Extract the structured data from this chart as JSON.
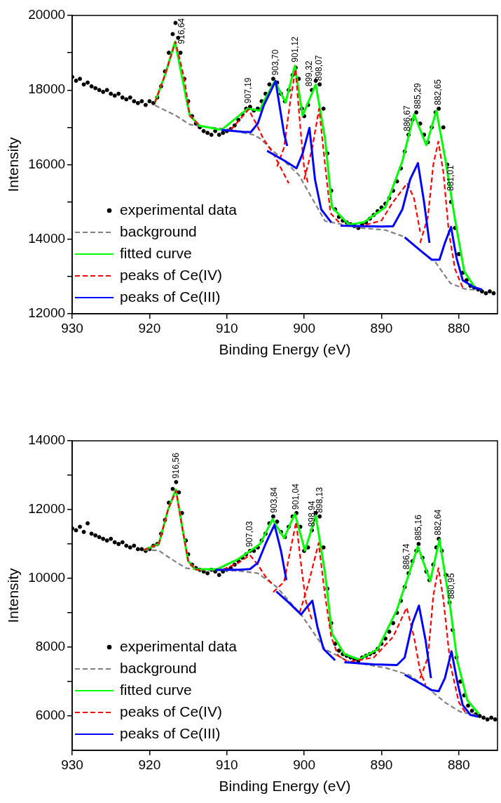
{
  "chart_data": [
    {
      "type": "line",
      "xlabel": "Binding Energy (eV)",
      "ylabel": "Intensity",
      "xlim": [
        930,
        875
      ],
      "xticks": [
        930,
        920,
        910,
        900,
        890,
        880
      ],
      "ylim": [
        12000,
        20000
      ],
      "yticks": [
        12000,
        {
          "value": 13000,
          "label": null
        },
        14000,
        {
          "value": 15000,
          "label": null
        },
        16000,
        {
          "value": 17000,
          "label": null
        },
        18000,
        {
          "value": 19000,
          "label": null
        },
        20000
      ],
      "grid": false,
      "legend": "bottom left",
      "annotations": [
        {
          "text": "916,64",
          "x": 916.64,
          "y": 19800
        },
        {
          "text": "907,19",
          "x": 907.19,
          "y": 17550
        },
        {
          "text": "903,70",
          "x": 903.7,
          "y": 18300
        },
        {
          "text": "901,12",
          "x": 901.12,
          "y": 18600
        },
        {
          "text": "899,32",
          "x": 899.32,
          "y": 17600
        },
        {
          "text": "898,07",
          "x": 898.07,
          "y": 18150
        },
        {
          "text": "886,67",
          "x": 886.67,
          "y": 16800
        },
        {
          "text": "885,29",
          "x": 885.29,
          "y": 17400
        },
        {
          "text": "882,65",
          "x": 882.65,
          "y": 17500
        },
        {
          "text": "881,01",
          "x": 881.01,
          "y": 15200
        }
      ],
      "series": [
        {
          "name": "experimental data",
          "type": "scatter",
          "marker": "circle",
          "color": "#000000",
          "x": [
            930,
            929.5,
            929,
            928.5,
            928,
            927.5,
            927,
            926.5,
            926,
            925.5,
            925,
            924.5,
            924,
            923.5,
            923,
            922.5,
            922,
            921.5,
            921,
            920.5,
            920,
            919.5,
            919,
            918.5,
            918,
            917.5,
            917,
            916.64,
            916.3,
            916,
            915.5,
            915,
            914.5,
            914,
            913.5,
            913,
            912.5,
            912,
            911.5,
            911,
            910.5,
            910,
            909.5,
            909,
            908.5,
            908,
            907.5,
            907,
            906.5,
            906,
            905.5,
            905,
            904.5,
            904,
            903.5,
            903,
            902.5,
            902,
            901.5,
            901.1,
            900.7,
            900.3,
            900,
            899.5,
            899,
            898.5,
            898,
            897.5,
            897,
            896.5,
            896,
            895.5,
            895,
            894.5,
            894,
            893.5,
            893,
            892.5,
            892,
            891.5,
            891,
            890.5,
            890,
            889.5,
            889,
            888.5,
            888,
            887.5,
            887,
            886.5,
            886,
            885.5,
            885,
            884.5,
            884,
            883.5,
            883,
            882.6,
            882,
            881.5,
            881,
            880.5,
            880,
            879.5,
            879,
            878.5,
            878,
            877.5,
            877,
            876.5,
            876,
            875.5
          ],
          "values": [
            18350,
            18250,
            18300,
            18150,
            18200,
            18100,
            18050,
            18000,
            17950,
            18000,
            17900,
            17850,
            17900,
            17800,
            17750,
            17800,
            17700,
            17650,
            17700,
            17600,
            17700,
            17650,
            17800,
            18100,
            18500,
            19000,
            19500,
            19800,
            19400,
            19000,
            18300,
            17700,
            17300,
            17100,
            17000,
            16900,
            16850,
            16800,
            16900,
            16800,
            16850,
            16900,
            16950,
            17050,
            17200,
            17350,
            17500,
            17550,
            17450,
            17500,
            17700,
            17900,
            18150,
            18300,
            18200,
            17900,
            17700,
            18000,
            18400,
            18600,
            18300,
            17500,
            17300,
            17600,
            18000,
            18250,
            18150,
            17500,
            16300,
            15300,
            14800,
            14600,
            14500,
            14450,
            14400,
            14350,
            14300,
            14400,
            14450,
            14550,
            14650,
            14750,
            14850,
            14950,
            15100,
            15300,
            15550,
            15900,
            16350,
            16800,
            17200,
            17400,
            17100,
            16800,
            16600,
            17000,
            17400,
            17500,
            17000,
            16000,
            15000,
            14300,
            13600,
            13100,
            12900,
            12750,
            12700,
            12650,
            12600,
            12550,
            12600,
            12550
          ]
        },
        {
          "name": "background",
          "type": "line",
          "line_style": "dashed",
          "color": "#808080",
          "x": [
            919.3,
            916.6,
            914.8,
            913.5,
            910,
            906.6,
            905.7,
            900.7,
            897.3,
            892.6,
            889.5,
            887.0,
            884.2,
            883.0,
            881.1,
            879.3,
            878.0
          ],
          "values": [
            17590,
            17315,
            17075,
            17030,
            16950,
            16800,
            16700,
            15725,
            14485,
            14300,
            14245,
            14060,
            13560,
            13375,
            12820,
            12670,
            12640
          ]
        },
        {
          "name": "fitted curve",
          "type": "line",
          "line_style": "solid",
          "color": "#00ff00",
          "x": [
            919.3,
            918,
            916.7,
            914.8,
            913.5,
            910.7,
            907.3,
            905.7,
            905.4,
            903.8,
            902.4,
            901.2,
            900.2,
            898.5,
            897.3,
            896.4,
            894.2,
            892.3,
            889.5,
            887.3,
            885.8,
            884.2,
            882.9,
            881.7,
            880.5,
            879.3,
            878.0
          ],
          "values": [
            17667,
            18400,
            19295,
            17315,
            17040,
            16930,
            17500,
            17445,
            17630,
            18240,
            17665,
            18650,
            17315,
            18150,
            16700,
            14855,
            14390,
            14450,
            14855,
            16090,
            17350,
            16520,
            17445,
            16090,
            14540,
            13135,
            12730
          ]
        },
        {
          "name": "peaks of Ce(IV)",
          "type": "line",
          "line_style": "dashed",
          "color": "#ff0000",
          "x": [
            919.3,
            918,
            916.64,
            915.5,
            914.8,
            913.5
          ],
          "values": [
            17667,
            18400,
            19295,
            18300,
            17315,
            17040
          ]
        },
        {
          "type": "line",
          "line_style": "dashed",
          "color": "#ff0000",
          "x": [
            909.5,
            907.19,
            906.2,
            905.3,
            904,
            902
          ],
          "values": [
            16930,
            17480,
            17100,
            16700,
            16300,
            15500
          ]
        },
        {
          "type": "line",
          "line_style": "dashed",
          "color": "#ff0000",
          "x": [
            903.5,
            902.6,
            901.8,
            901.12,
            900.5,
            900,
            899.5
          ],
          "values": [
            15950,
            16460,
            17700,
            18560,
            17000,
            15900,
            15500
          ]
        },
        {
          "type": "line",
          "line_style": "dashed",
          "color": "#ff0000",
          "x": [
            900,
            899,
            898.07,
            897.3,
            896.6,
            895.5
          ],
          "values": [
            15600,
            16400,
            17500,
            16000,
            14700,
            14450
          ]
        },
        {
          "type": "line",
          "line_style": "dashed",
          "color": "#ff0000",
          "x": [
            893,
            890,
            888.5,
            886.67,
            885.8,
            885
          ],
          "values": [
            14330,
            14500,
            15000,
            15500,
            15100,
            14200
          ]
        },
        {
          "type": "line",
          "line_style": "dashed",
          "color": "#ff0000",
          "x": [
            885,
            884,
            883.3,
            882.65,
            882,
            881.3,
            880.5,
            879.5
          ],
          "values": [
            13900,
            14600,
            16000,
            16620,
            15800,
            14200,
            13200,
            12700
          ]
        },
        {
          "name": "peaks of Ce(III)",
          "type": "line",
          "line_style": "solid",
          "color": "#0000ff",
          "x": [
            910.7,
            908,
            906.9,
            906,
            905.2,
            903.7,
            902.6,
            902.2
          ],
          "values": [
            16930,
            16880,
            16870,
            17100,
            17600,
            18240,
            16830,
            16500
          ]
        },
        {
          "type": "line",
          "line_style": "solid",
          "color": "#0000ff",
          "x": [
            904.8,
            902.5,
            901,
            900.2,
            899.32,
            898.6,
            897.8,
            896.5
          ],
          "values": [
            16370,
            16100,
            15900,
            16300,
            16985,
            15600,
            14800,
            14450
          ]
        },
        {
          "type": "line",
          "line_style": "solid",
          "color": "#0000ff",
          "x": [
            895.3,
            890,
            888.5,
            887.3,
            886.3,
            885.29,
            884.5,
            883.8
          ],
          "values": [
            14360,
            14340,
            14350,
            14800,
            15600,
            16040,
            15000,
            13900
          ]
        },
        {
          "type": "line",
          "line_style": "solid",
          "color": "#0000ff",
          "x": [
            887,
            885,
            883.5,
            882.5,
            881.8,
            881.01,
            880.3,
            879.5,
            878,
            877
          ],
          "values": [
            14050,
            13700,
            13450,
            13450,
            13900,
            14330,
            13500,
            12900,
            12700,
            12650
          ]
        }
      ]
    },
    {
      "type": "line",
      "xlabel": "Binding Energy (eV)",
      "ylabel": "Intensity",
      "xlim": [
        930,
        875
      ],
      "xticks": [
        930,
        920,
        910,
        900,
        890,
        880
      ],
      "ylim": [
        5000,
        14000
      ],
      "yticks": [
        6000,
        {
          "value": 7000,
          "label": null
        },
        8000,
        {
          "value": 9000,
          "label": null
        },
        10000,
        {
          "value": 11000,
          "label": null
        },
        12000,
        {
          "value": 13000,
          "label": null
        },
        14000
      ],
      "grid": false,
      "legend": "bottom left",
      "annotations": [
        {
          "text": "916,56",
          "x": 916.56,
          "y": 12800
        },
        {
          "text": "907,03",
          "x": 907.03,
          "y": 10800
        },
        {
          "text": "903,84",
          "x": 903.84,
          "y": 11800
        },
        {
          "text": "901,04",
          "x": 901.04,
          "y": 11900
        },
        {
          "text": "898,94",
          "x": 898.94,
          "y": 11400
        },
        {
          "text": "898,13",
          "x": 898.13,
          "y": 11800
        },
        {
          "text": "886,74",
          "x": 886.74,
          "y": 10150
        },
        {
          "text": "885,16",
          "x": 885.16,
          "y": 11000
        },
        {
          "text": "882,64",
          "x": 882.64,
          "y": 11150
        },
        {
          "text": "880,95",
          "x": 880.95,
          "y": 9300
        }
      ],
      "series": [
        {
          "name": "experimental data",
          "type": "scatter",
          "marker": "circle",
          "color": "#000000",
          "x": [
            930,
            929.5,
            929,
            928.5,
            928,
            927.5,
            927,
            926.5,
            926,
            925.5,
            925,
            924.5,
            924,
            923.5,
            923,
            922.5,
            922,
            921.5,
            921,
            920.5,
            920,
            919.5,
            919,
            918.5,
            918,
            917.5,
            917,
            916.56,
            916.2,
            915.8,
            915.3,
            915,
            914.5,
            914,
            913.5,
            913,
            912.5,
            912,
            911.5,
            911,
            910.5,
            910,
            909.5,
            909,
            908.5,
            908,
            907.5,
            907,
            906.5,
            906,
            905.5,
            905,
            904.5,
            904,
            903.5,
            903,
            902.5,
            902,
            901.5,
            901,
            900.5,
            900,
            899.5,
            899,
            898.5,
            898,
            897.5,
            897,
            896.5,
            896,
            895.5,
            895,
            894.5,
            894,
            893.5,
            893,
            892.5,
            892,
            891.5,
            891,
            890.5,
            890,
            889.5,
            889,
            888.5,
            888,
            887.5,
            887,
            886.5,
            886,
            885.5,
            885.2,
            884.7,
            884.2,
            883.8,
            883.3,
            882.9,
            882.6,
            882.2,
            881.7,
            881.2,
            880.8,
            880.3,
            879.8,
            879.3,
            878.8,
            878.3,
            877.8,
            877.3,
            876.8,
            876.3,
            875.8,
            875.3
          ],
          "values": [
            11450,
            11400,
            11500,
            11350,
            11600,
            11300,
            11250,
            11200,
            11150,
            11100,
            11150,
            11050,
            11000,
            11050,
            10950,
            10900,
            10950,
            10850,
            10850,
            10800,
            10850,
            10950,
            11000,
            11300,
            11700,
            12200,
            12600,
            12800,
            12500,
            11900,
            11100,
            10700,
            10400,
            10300,
            10250,
            10200,
            10150,
            10250,
            10200,
            10100,
            10200,
            10250,
            10300,
            10400,
            10500,
            10600,
            10700,
            10800,
            10800,
            10900,
            11100,
            11300,
            11600,
            11800,
            11650,
            11350,
            11200,
            11500,
            11800,
            11900,
            11500,
            10800,
            10900,
            11400,
            11900,
            11800,
            10900,
            9700,
            8700,
            8100,
            7900,
            7800,
            7750,
            7700,
            7650,
            7600,
            7700,
            7750,
            7800,
            7850,
            7950,
            8100,
            8250,
            8450,
            8700,
            9000,
            9350,
            9750,
            10150,
            10500,
            10800,
            11000,
            10600,
            10200,
            9950,
            10400,
            10900,
            11150,
            10800,
            10100,
            9300,
            8500,
            7700,
            7000,
            6600,
            6300,
            6150,
            6050,
            6000,
            5950,
            5900,
            5950,
            5900
          ]
        },
        {
          "name": "background",
          "type": "line",
          "line_style": "dashed",
          "color": "#808080",
          "x": [
            920.7,
            918.8,
            917.2,
            915.3,
            913.5,
            908.5,
            906,
            903.6,
            900.4,
            897.3,
            894.2,
            889.5,
            886.4,
            883.9,
            881.7,
            879.8,
            877.7
          ],
          "values": [
            10830,
            10810,
            10565,
            10300,
            10250,
            10220,
            10150,
            9760,
            8950,
            7940,
            7580,
            7400,
            7190,
            6790,
            6380,
            6120,
            6020
          ]
        },
        {
          "name": "fitted curve",
          "type": "line",
          "line_style": "solid",
          "color": "#00ff00",
          "x": [
            920.7,
            918.8,
            917.6,
            916.6,
            915.0,
            914.1,
            911.3,
            908.5,
            906.9,
            905.7,
            904.1,
            902.6,
            901.2,
            899.9,
            898.5,
            897.3,
            896.4,
            894.8,
            892.9,
            890.5,
            888.0,
            886.4,
            885.3,
            883.7,
            882.5,
            881.1,
            880.2,
            878.9,
            877.4
          ],
          "values": [
            10830,
            11000,
            12000,
            12585,
            10505,
            10263,
            10263,
            10565,
            10810,
            11000,
            11717,
            11170,
            11880,
            10810,
            11820,
            10160,
            8400,
            7800,
            7640,
            7940,
            9090,
            10160,
            10930,
            9920,
            11130,
            9150,
            7600,
            6460,
            6060
          ]
        },
        {
          "name": "peaks of Ce(IV)",
          "type": "line",
          "line_style": "dashed",
          "color": "#ff0000",
          "x": [
            920.7,
            918.8,
            917.6,
            916.56,
            915.8,
            915,
            914.1,
            913
          ],
          "values": [
            10830,
            11000,
            12000,
            12550,
            11500,
            10500,
            10260,
            10240
          ]
        },
        {
          "type": "line",
          "line_style": "dashed",
          "color": "#ff0000",
          "x": [
            910.5,
            908.5,
            907.03,
            906,
            905,
            904
          ],
          "values": [
            10260,
            10450,
            10680,
            10400,
            10050,
            9800
          ]
        },
        {
          "type": "line",
          "line_style": "dashed",
          "color": "#ff0000",
          "x": [
            904,
            902.6,
            901.8,
            901.04,
            900.4,
            899.8,
            899
          ],
          "values": [
            9600,
            9900,
            10800,
            11640,
            10400,
            9350,
            8800
          ]
        },
        {
          "type": "line",
          "line_style": "dashed",
          "color": "#ff0000",
          "x": [
            900.6,
            899.5,
            898.13,
            897.3,
            896.5,
            895.6,
            894.5
          ],
          "values": [
            9000,
            9800,
            11030,
            9500,
            8300,
            7750,
            7600
          ]
        },
        {
          "type": "line",
          "line_style": "dashed",
          "color": "#ff0000",
          "x": [
            894,
            891,
            888.5,
            886.74,
            885.8,
            885,
            884.3
          ],
          "values": [
            7580,
            7700,
            8300,
            9150,
            8300,
            7300,
            6900
          ]
        },
        {
          "type": "line",
          "line_style": "dashed",
          "color": "#ff0000",
          "x": [
            885,
            884,
            883.3,
            882.64,
            882,
            881.1,
            880,
            879
          ],
          "values": [
            7100,
            7700,
            9500,
            10300,
            9400,
            7500,
            6400,
            6050
          ]
        },
        {
          "name": "peaks of Ce(III)",
          "type": "line",
          "line_style": "solid",
          "color": "#0000ff",
          "x": [
            911.5,
            908.5,
            907,
            906,
            905,
            903.84,
            903,
            902.3
          ],
          "values": [
            10250,
            10250,
            10270,
            10450,
            11000,
            11560,
            10800,
            9950
          ]
        },
        {
          "type": "line",
          "line_style": "solid",
          "color": "#0000ff",
          "x": [
            903.6,
            902,
            900.4,
            899.7,
            898.94,
            898.3,
            897.5,
            896
          ],
          "values": [
            9620,
            9300,
            8950,
            9150,
            9350,
            8600,
            7950,
            7620
          ]
        },
        {
          "type": "line",
          "line_style": "solid",
          "color": "#0000ff",
          "x": [
            894.8,
            891,
            888,
            887,
            886,
            885.16,
            884.3,
            883.6
          ],
          "values": [
            7560,
            7500,
            7480,
            7700,
            8700,
            9210,
            8200,
            7100
          ]
        },
        {
          "type": "line",
          "line_style": "solid",
          "color": "#0000ff",
          "x": [
            887,
            885,
            883.5,
            882.6,
            881.8,
            880.95,
            880.2,
            879.5,
            878.5,
            877.5
          ],
          "values": [
            7200,
            6950,
            6750,
            6720,
            7100,
            7880,
            7000,
            6320,
            6030,
            5980
          ]
        }
      ]
    }
  ]
}
